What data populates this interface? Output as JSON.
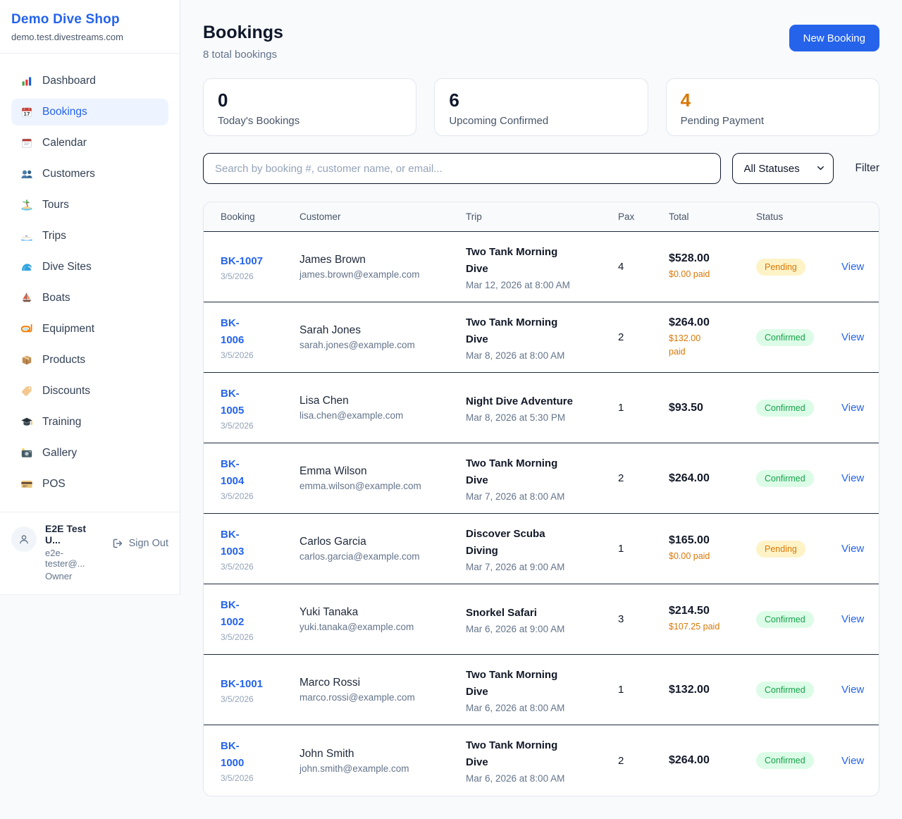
{
  "colors": {
    "accent": "#2563eb",
    "pending": "#d97706",
    "confirmed": "#16a34a",
    "row_border": "#1e293b"
  },
  "sidebar": {
    "brand": {
      "name": "Demo Dive Shop",
      "domain": "demo.test.divestreams.com"
    },
    "items": [
      {
        "label": "Dashboard",
        "icon": "bar-chart-icon",
        "active": false
      },
      {
        "label": "Bookings",
        "icon": "calendar-date-icon",
        "active": true
      },
      {
        "label": "Calendar",
        "icon": "tear-off-calendar-icon",
        "active": false
      },
      {
        "label": "Customers",
        "icon": "people-icon",
        "active": false
      },
      {
        "label": "Tours",
        "icon": "island-icon",
        "active": false
      },
      {
        "label": "Trips",
        "icon": "speedboat-icon",
        "active": false
      },
      {
        "label": "Dive Sites",
        "icon": "wave-icon",
        "active": false
      },
      {
        "label": "Boats",
        "icon": "sailboat-icon",
        "active": false
      },
      {
        "label": "Equipment",
        "icon": "diving-mask-icon",
        "active": false
      },
      {
        "label": "Products",
        "icon": "package-icon",
        "active": false
      },
      {
        "label": "Discounts",
        "icon": "tag-icon",
        "active": false
      },
      {
        "label": "Training",
        "icon": "graduation-cap-icon",
        "active": false
      },
      {
        "label": "Gallery",
        "icon": "camera-icon",
        "active": false
      },
      {
        "label": "POS",
        "icon": "credit-card-icon",
        "active": false
      }
    ],
    "user": {
      "name": "E2E Test U...",
      "email": "e2e-tester@...",
      "role": "Owner",
      "sign_out": "Sign Out"
    }
  },
  "header": {
    "title": "Bookings",
    "subtitle": "8 total bookings",
    "new_booking": "New Booking"
  },
  "stats": [
    {
      "value": "0",
      "label": "Today's Bookings",
      "value_color": "#0f172a"
    },
    {
      "value": "6",
      "label": "Upcoming Confirmed",
      "value_color": "#0f172a"
    },
    {
      "value": "4",
      "label": "Pending Payment",
      "value_color": "#d97706"
    }
  ],
  "filters": {
    "search_placeholder": "Search by booking #, customer name, or email...",
    "status_select": "All Statuses",
    "filter_label": "Filter"
  },
  "table": {
    "headers": [
      "Booking",
      "Customer",
      "Trip",
      "Pax",
      "Total",
      "Status",
      ""
    ],
    "rows": [
      {
        "id_lines": [
          "BK-1007"
        ],
        "date": "3/5/2026",
        "customer": {
          "name": "James Brown",
          "email": "james.brown@example.com"
        },
        "trip": {
          "name_lines": [
            "Two Tank Morning",
            "Dive"
          ],
          "datetime": "Mar 12, 2026 at 8:00 AM"
        },
        "pax": "4",
        "total": "$528.00",
        "paid_lines": [
          "$0.00 paid"
        ],
        "status": "Pending",
        "status_kind": "pending",
        "action": "View"
      },
      {
        "id_lines": [
          "BK-",
          "1006"
        ],
        "date": "3/5/2026",
        "customer": {
          "name": "Sarah Jones",
          "email": "sarah.jones@example.com"
        },
        "trip": {
          "name_lines": [
            "Two Tank Morning",
            "Dive"
          ],
          "datetime": "Mar 8, 2026 at 8:00 AM"
        },
        "pax": "2",
        "total": "$264.00",
        "paid_lines": [
          "$132.00",
          "paid"
        ],
        "status": "Confirmed",
        "status_kind": "confirmed",
        "action": "View"
      },
      {
        "id_lines": [
          "BK-",
          "1005"
        ],
        "date": "3/5/2026",
        "customer": {
          "name": "Lisa Chen",
          "email": "lisa.chen@example.com"
        },
        "trip": {
          "name_lines": [
            "Night Dive Adventure"
          ],
          "datetime": "Mar 8, 2026 at 5:30 PM"
        },
        "pax": "1",
        "total": "$93.50",
        "paid_lines": [],
        "status": "Confirmed",
        "status_kind": "confirmed",
        "action": "View"
      },
      {
        "id_lines": [
          "BK-",
          "1004"
        ],
        "date": "3/5/2026",
        "customer": {
          "name": "Emma Wilson",
          "email": "emma.wilson@example.com"
        },
        "trip": {
          "name_lines": [
            "Two Tank Morning",
            "Dive"
          ],
          "datetime": "Mar 7, 2026 at 8:00 AM"
        },
        "pax": "2",
        "total": "$264.00",
        "paid_lines": [],
        "status": "Confirmed",
        "status_kind": "confirmed",
        "action": "View"
      },
      {
        "id_lines": [
          "BK-",
          "1003"
        ],
        "date": "3/5/2026",
        "customer": {
          "name": "Carlos Garcia",
          "email": "carlos.garcia@example.com"
        },
        "trip": {
          "name_lines": [
            "Discover Scuba",
            "Diving"
          ],
          "datetime": "Mar 7, 2026 at 9:00 AM"
        },
        "pax": "1",
        "total": "$165.00",
        "paid_lines": [
          "$0.00 paid"
        ],
        "status": "Pending",
        "status_kind": "pending",
        "action": "View"
      },
      {
        "id_lines": [
          "BK-",
          "1002"
        ],
        "date": "3/5/2026",
        "customer": {
          "name": "Yuki Tanaka",
          "email": "yuki.tanaka@example.com"
        },
        "trip": {
          "name_lines": [
            "Snorkel Safari"
          ],
          "datetime": "Mar 6, 2026 at 9:00 AM"
        },
        "pax": "3",
        "total": "$214.50",
        "paid_lines": [
          "$107.25 paid"
        ],
        "status": "Confirmed",
        "status_kind": "confirmed",
        "action": "View"
      },
      {
        "id_lines": [
          "BK-1001"
        ],
        "date": "3/5/2026",
        "customer": {
          "name": "Marco Rossi",
          "email": "marco.rossi@example.com"
        },
        "trip": {
          "name_lines": [
            "Two Tank Morning",
            "Dive"
          ],
          "datetime": "Mar 6, 2026 at 8:00 AM"
        },
        "pax": "1",
        "total": "$132.00",
        "paid_lines": [],
        "status": "Confirmed",
        "status_kind": "confirmed",
        "action": "View"
      },
      {
        "id_lines": [
          "BK-",
          "1000"
        ],
        "date": "3/5/2026",
        "customer": {
          "name": "John Smith",
          "email": "john.smith@example.com"
        },
        "trip": {
          "name_lines": [
            "Two Tank Morning",
            "Dive"
          ],
          "datetime": "Mar 6, 2026 at 8:00 AM"
        },
        "pax": "2",
        "total": "$264.00",
        "paid_lines": [],
        "status": "Confirmed",
        "status_kind": "confirmed",
        "action": "View"
      }
    ]
  }
}
